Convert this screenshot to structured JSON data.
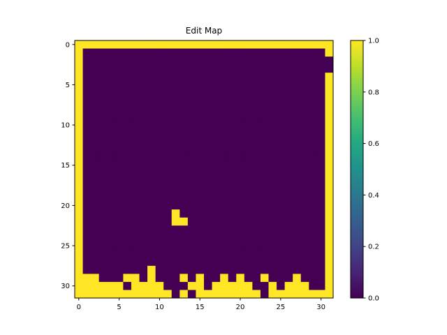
{
  "chart_data": {
    "type": "heatmap",
    "title": "Edit Map",
    "xlabel": "",
    "ylabel": "",
    "shape": [
      32,
      32
    ],
    "value_range": [
      0.0,
      1.0
    ],
    "colormap": "viridis",
    "colors": {
      "low": "#440154",
      "high": "#fde725"
    },
    "x_ticks": [
      "0",
      "5",
      "10",
      "15",
      "20",
      "25",
      "30"
    ],
    "y_ticks": [
      "0",
      "5",
      "10",
      "15",
      "20",
      "25",
      "30"
    ],
    "colorbar_ticks": [
      "0.0",
      "0.2",
      "0.4",
      "0.6",
      "0.8",
      "1.0"
    ],
    "rows": [
      "11111111111111111111111111111111",
      "10000000000000000000000000000001",
      "10000000000000000000000000000000",
      "10000000000000000000000000000000",
      "10000000000000000000000000000001",
      "10000000000000000000000000000001",
      "10000000000000000000000000000001",
      "10000000000000000000000000000001",
      "10000000000000000000000000000001",
      "10000000000000000000000000000001",
      "10000000000000000000000000000001",
      "10000000000000000000000000000001",
      "10000000000000000000000000000001",
      "10000000000000000000000000000001",
      "10000000000000000000000000000001",
      "10000000000000000000000000000001",
      "10000000000000000000000000000001",
      "10000000000000000000000000000001",
      "10000000000000000000000000000001",
      "10000000000000000000000000000001",
      "10000000000000000000000000000001",
      "10000000000010000000000000000001",
      "10000000000011000000000000000001",
      "10000000000000000000000000000001",
      "10000000000000000000000000000001",
      "10000000000000000000000000000001",
      "10000000000000000000000000000001",
      "10000000000000000000000000000001",
      "10000000010000000000000000000001",
      "11100011010001010010100100010001",
      "11111101111000110111110010111001",
      "11111111111101011111111011111111"
    ]
  }
}
